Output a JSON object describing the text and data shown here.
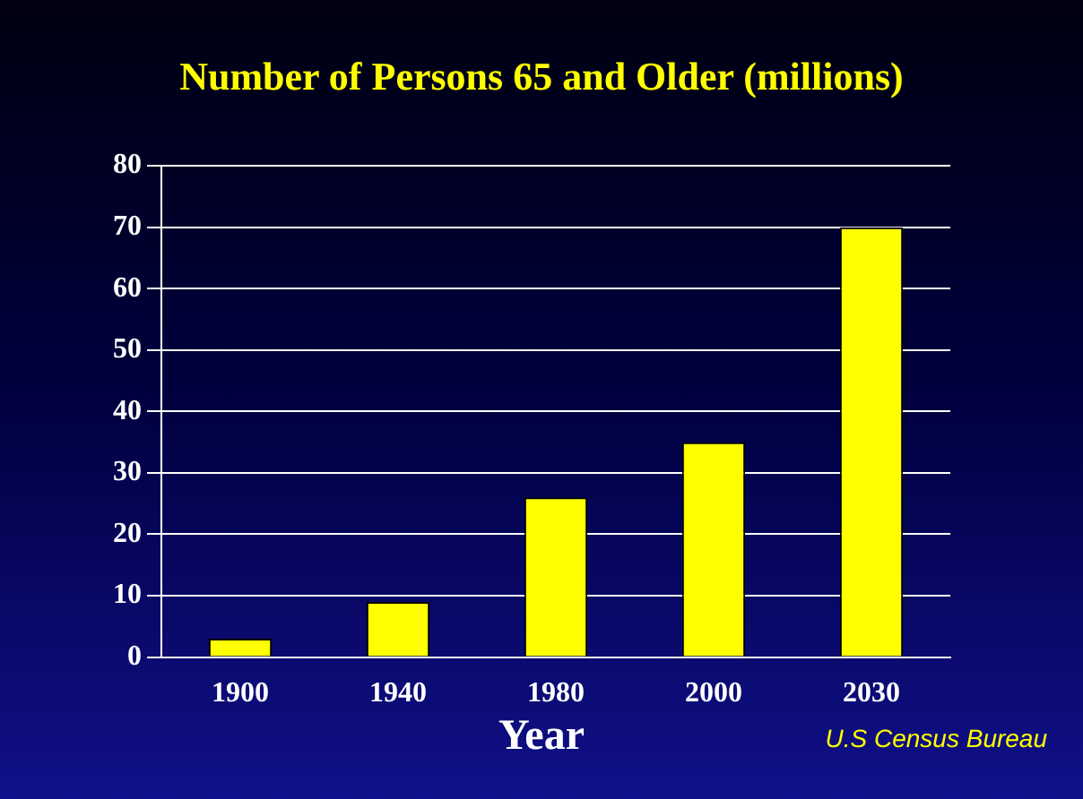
{
  "chart_data": {
    "type": "bar",
    "title": "Number of Persons 65 and Older (millions)",
    "xlabel": "Year",
    "categories": [
      "1900",
      "1940",
      "1980",
      "2000",
      "2030"
    ],
    "values": [
      3,
      9,
      26,
      35,
      70
    ],
    "color": "#ffff00",
    "ylim": [
      0,
      80
    ],
    "yticks": [
      0,
      10,
      20,
      30,
      40,
      50,
      60,
      70,
      80
    ],
    "grid": "y",
    "annotations": [
      "U.S Census Bureau"
    ]
  }
}
